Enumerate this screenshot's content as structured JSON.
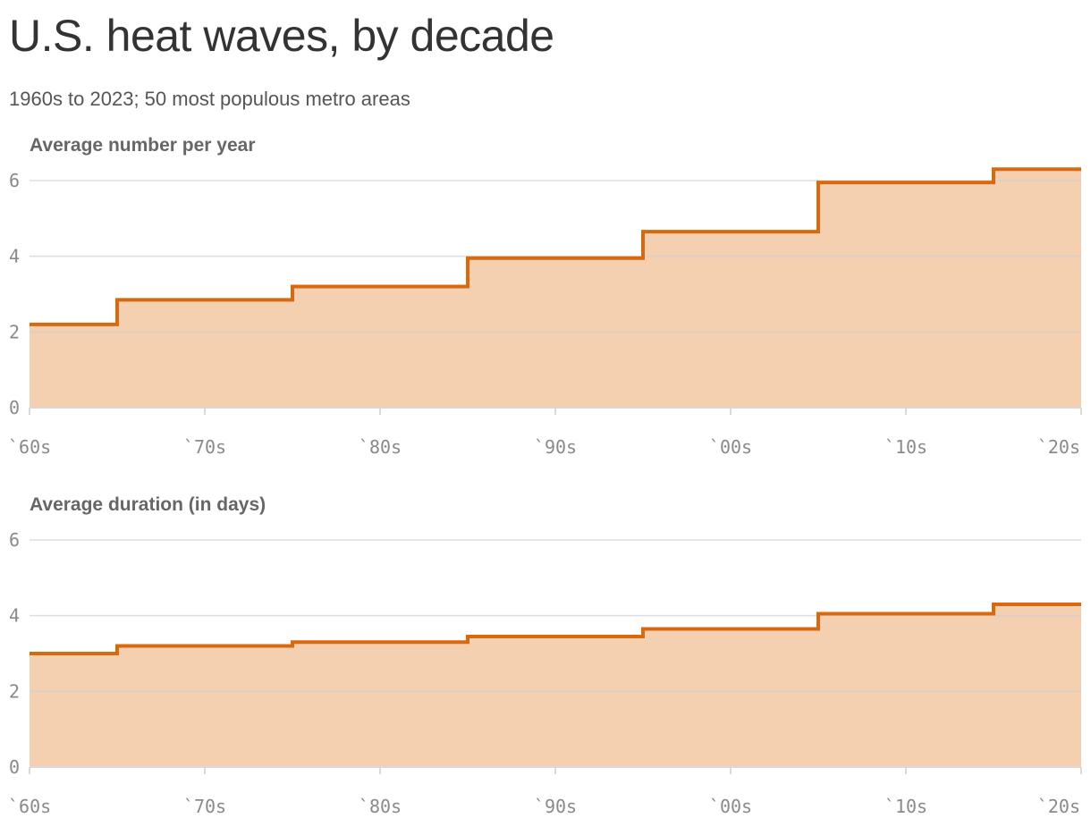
{
  "title": "U.S. heat waves, by decade",
  "subtitle": "1960s to 2023; 50 most populous metro areas",
  "colors": {
    "line": "#d9690f",
    "fill": "#f4cfb0",
    "grid": "#dddddd",
    "title": "#333333"
  },
  "chart_data": [
    {
      "type": "area",
      "step": true,
      "title": "Average number per year",
      "x_tick_labels": [
        "`60s",
        "`70s",
        "`80s",
        "`90s",
        "`00s",
        "`10s",
        "`20s"
      ],
      "x": [
        "`60s",
        "`70s",
        "`80s",
        "`90s",
        "`00s",
        "`10s",
        "`20s"
      ],
      "values": [
        2.2,
        2.85,
        3.2,
        3.95,
        4.65,
        5.95,
        6.3
      ],
      "y_ticks": [
        "0",
        "2",
        "4",
        "6"
      ],
      "ylim": [
        0,
        6
      ],
      "grid": true
    },
    {
      "type": "area",
      "step": true,
      "title": "Average duration (in days)",
      "x_tick_labels": [
        "`60s",
        "`70s",
        "`80s",
        "`90s",
        "`00s",
        "`10s",
        "`20s"
      ],
      "x": [
        "`60s",
        "`70s",
        "`80s",
        "`90s",
        "`00s",
        "`10s",
        "`20s"
      ],
      "values": [
        3.0,
        3.2,
        3.3,
        3.45,
        3.65,
        4.05,
        4.3
      ],
      "y_ticks": [
        "0",
        "2",
        "4",
        "6"
      ],
      "ylim": [
        0,
        6
      ],
      "grid": true
    }
  ]
}
